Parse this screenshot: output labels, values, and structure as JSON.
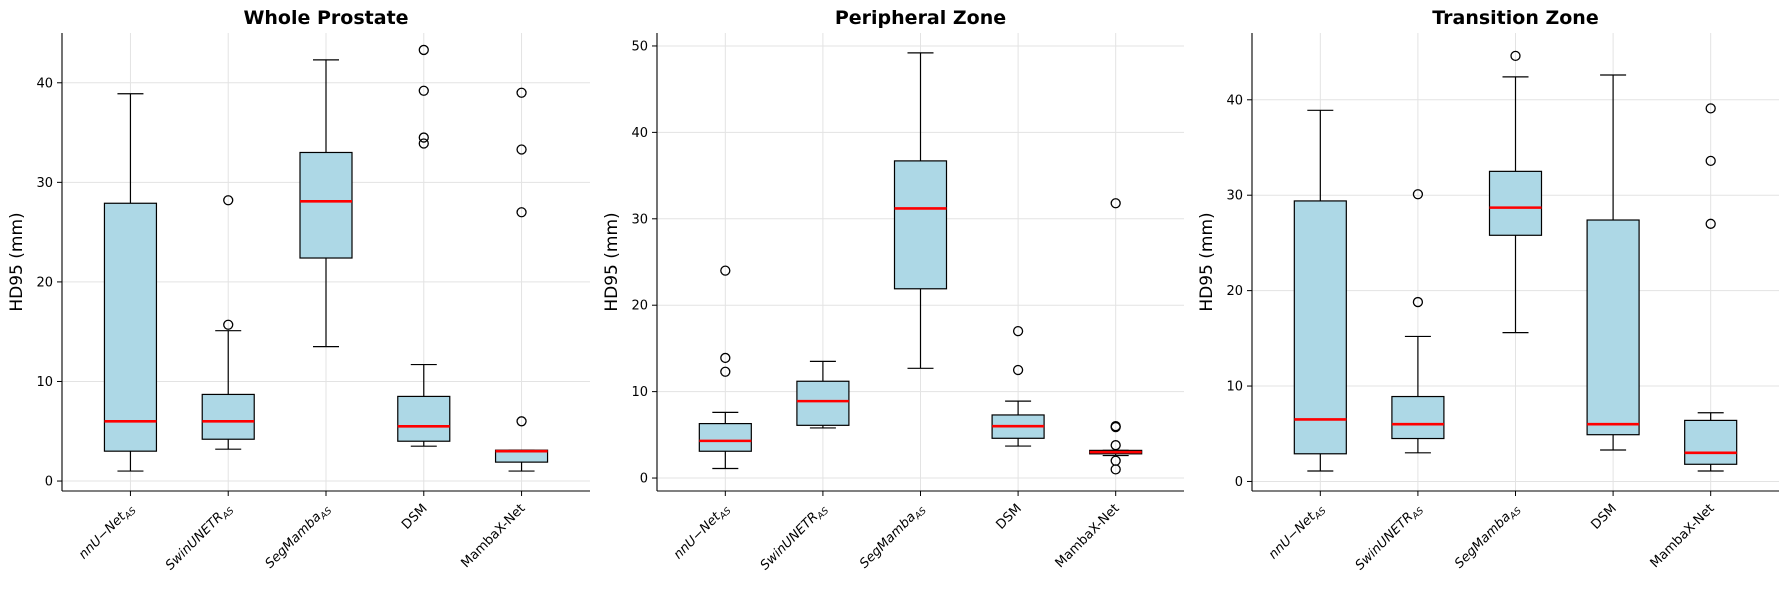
{
  "chart_data": [
    {
      "type": "box",
      "title": "Whole Prostate",
      "ylabel": "HD95 (mm)",
      "ylim": [
        -1,
        45
      ],
      "yticks": [
        0,
        10,
        20,
        30,
        40
      ],
      "grid": true,
      "categories": [
        {
          "base": "nnU−Net",
          "sub": "AS"
        },
        {
          "base": "SwinUNETR",
          "sub": "AS"
        },
        {
          "base": "SegMamba",
          "sub": "AS"
        },
        {
          "base": "DSM",
          "sub": ""
        },
        {
          "base": "MambaX-Net",
          "sub": ""
        }
      ],
      "boxes": [
        {
          "whislo": 1.0,
          "q1": 3.0,
          "med": 6.0,
          "q3": 27.9,
          "whishi": 38.9,
          "fliers": []
        },
        {
          "whislo": 3.2,
          "q1": 4.2,
          "med": 6.0,
          "q3": 8.7,
          "whishi": 15.1,
          "fliers": [
            15.7,
            28.2
          ]
        },
        {
          "whislo": 13.5,
          "q1": 22.4,
          "med": 28.1,
          "q3": 33.0,
          "whishi": 42.3,
          "fliers": []
        },
        {
          "whislo": 3.5,
          "q1": 4.0,
          "med": 5.5,
          "q3": 8.5,
          "whishi": 11.7,
          "fliers": [
            33.9,
            34.5,
            39.2,
            43.3
          ]
        },
        {
          "whislo": 1.0,
          "q1": 1.9,
          "med": 3.0,
          "q3": 3.1,
          "whishi": 3.1,
          "fliers": [
            6.0,
            27.0,
            33.3,
            39.0
          ]
        }
      ]
    },
    {
      "type": "box",
      "title": "Peripheral Zone",
      "ylabel": "HD95 (mm)",
      "ylim": [
        -1.5,
        51.5
      ],
      "yticks": [
        0,
        10,
        20,
        30,
        40,
        50
      ],
      "grid": true,
      "categories": [
        {
          "base": "nnU−Net",
          "sub": "AS"
        },
        {
          "base": "SwinUNETR",
          "sub": "AS"
        },
        {
          "base": "SegMamba",
          "sub": "AS"
        },
        {
          "base": "DSM",
          "sub": ""
        },
        {
          "base": "MambaX-Net",
          "sub": ""
        }
      ],
      "boxes": [
        {
          "whislo": 1.1,
          "q1": 3.1,
          "med": 4.3,
          "q3": 6.3,
          "whishi": 7.6,
          "fliers": [
            12.3,
            13.9,
            24.0
          ]
        },
        {
          "whislo": 5.8,
          "q1": 6.1,
          "med": 8.9,
          "q3": 11.2,
          "whishi": 13.5,
          "fliers": []
        },
        {
          "whislo": 12.7,
          "q1": 21.9,
          "med": 31.2,
          "q3": 36.7,
          "whishi": 49.2,
          "fliers": []
        },
        {
          "whislo": 3.7,
          "q1": 4.6,
          "med": 6.0,
          "q3": 7.3,
          "whishi": 8.9,
          "fliers": [
            12.5,
            17.0
          ]
        },
        {
          "whislo": 2.6,
          "q1": 2.8,
          "med": 3.0,
          "q3": 3.2,
          "whishi": 3.2,
          "fliers": [
            1.0,
            2.0,
            3.8,
            5.9,
            6.0,
            31.8
          ]
        }
      ]
    },
    {
      "type": "box",
      "title": "Transition Zone",
      "ylabel": "HD95 (mm)",
      "ylim": [
        -1,
        47
      ],
      "yticks": [
        0,
        10,
        20,
        30,
        40
      ],
      "grid": true,
      "categories": [
        {
          "base": "nnU−Net",
          "sub": "AS"
        },
        {
          "base": "SwinUNETR",
          "sub": "AS"
        },
        {
          "base": "SegMamba",
          "sub": "AS"
        },
        {
          "base": "DSM",
          "sub": ""
        },
        {
          "base": "MambaX-Net",
          "sub": ""
        }
      ],
      "boxes": [
        {
          "whislo": 1.1,
          "q1": 2.9,
          "med": 6.5,
          "q3": 29.4,
          "whishi": 38.9,
          "fliers": []
        },
        {
          "whislo": 3.0,
          "q1": 4.5,
          "med": 6.0,
          "q3": 8.9,
          "whishi": 15.2,
          "fliers": [
            18.8,
            30.1
          ]
        },
        {
          "whislo": 15.6,
          "q1": 25.8,
          "med": 28.7,
          "q3": 32.5,
          "whishi": 42.4,
          "fliers": [
            44.6
          ]
        },
        {
          "whislo": 3.3,
          "q1": 4.9,
          "med": 6.0,
          "q3": 27.4,
          "whishi": 42.6,
          "fliers": []
        },
        {
          "whislo": 1.1,
          "q1": 1.8,
          "med": 3.0,
          "q3": 6.4,
          "whishi": 7.2,
          "fliers": [
            27.0,
            33.6,
            39.1
          ]
        }
      ]
    }
  ],
  "colors": {
    "box_fill": "#add8e6",
    "median": "#ff0000",
    "grid": "#e3e3e3",
    "ink": "#000000"
  }
}
